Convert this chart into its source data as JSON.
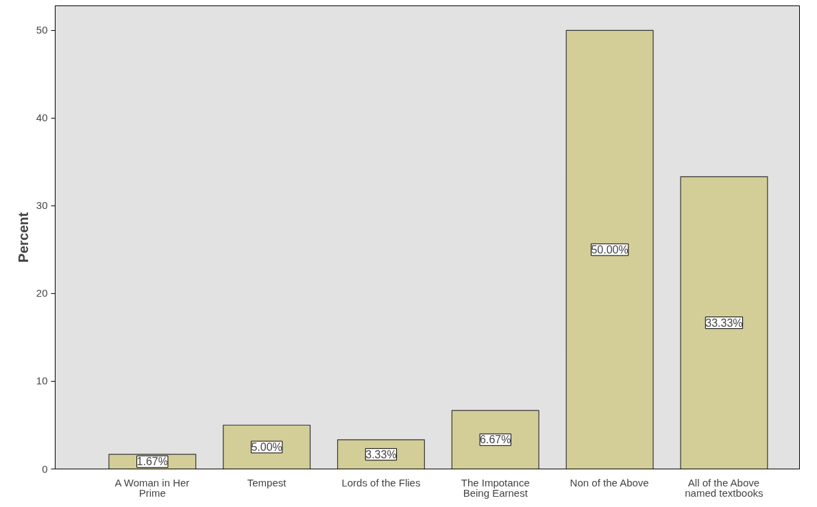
{
  "chart_data": {
    "type": "bar",
    "ylabel": "Percent",
    "categories": [
      "A Woman in Her Prime",
      "Tempest",
      "Lords of the Flies",
      "The Impotance Being Earnest",
      "Non of the Above",
      "All of the Above named textbooks"
    ],
    "values": [
      1.67,
      5.0,
      3.33,
      6.67,
      50.0,
      33.33
    ],
    "value_labels": [
      "1.67%",
      "5.00%",
      "3.33%",
      "6.67%",
      "50.00%",
      "33.33%"
    ],
    "color": "#d3ce97",
    "ylim": [
      0,
      52.8
    ],
    "yticks": [
      0,
      10,
      20,
      30,
      40,
      50
    ],
    "grid": false
  }
}
